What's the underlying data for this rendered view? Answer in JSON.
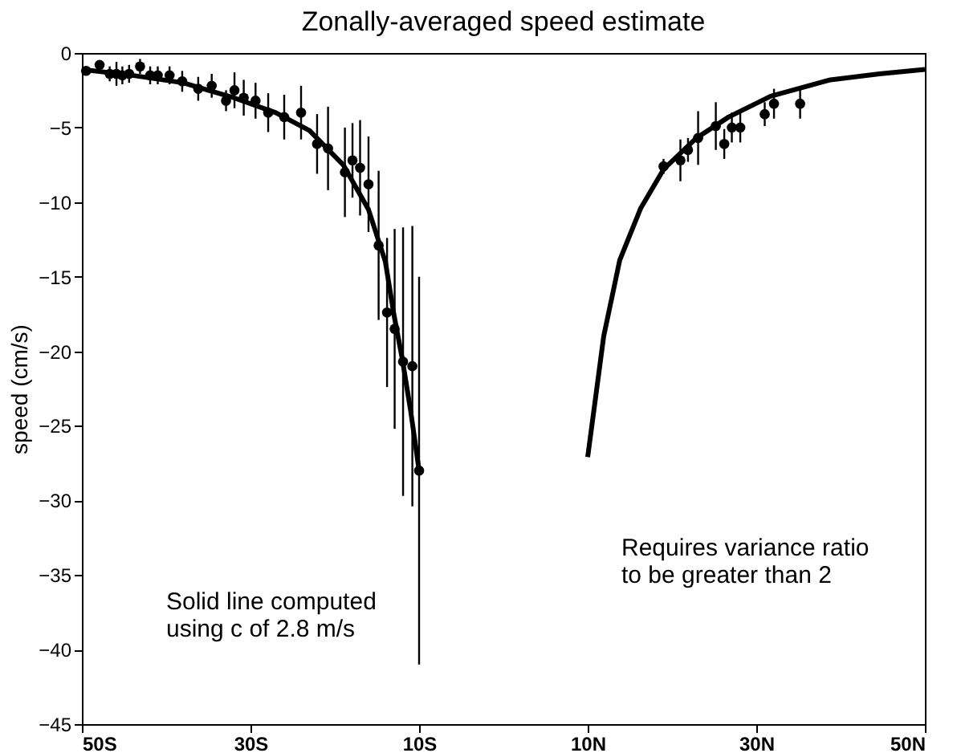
{
  "chart_data": {
    "type": "scatter",
    "title": "Zonally-averaged speed estimate",
    "ylabel": "speed (cm/s)",
    "xlim": [
      -50,
      50
    ],
    "ylim": [
      -45,
      0
    ],
    "xticks": [
      {
        "value": -50,
        "label": "50S"
      },
      {
        "value": -30,
        "label": "30S"
      },
      {
        "value": -10,
        "label": "10S"
      },
      {
        "value": 10,
        "label": "10N"
      },
      {
        "value": 30,
        "label": "30N"
      },
      {
        "value": 50,
        "label": "50N"
      }
    ],
    "yticks": [
      -45,
      -40,
      -35,
      -30,
      -25,
      -20,
      -15,
      -10,
      -5,
      0
    ],
    "grid": false,
    "line_style": "solid",
    "annotations": [
      "Solid line computed\nusing c of 2.8 m/s",
      "Requires variance ratio\nto be greater than 2"
    ],
    "series": [
      {
        "type": "line",
        "color": "#000000",
        "x": [
          -50,
          -44,
          -38,
          -32,
          -27,
          -23,
          -19,
          -16,
          -14,
          -13,
          -12,
          -11,
          -10
        ],
        "values": [
          -1.1,
          -1.5,
          -2.0,
          -3.0,
          -4.0,
          -5.2,
          -7.5,
          -10.5,
          -14,
          -17.5,
          -20.5,
          -24,
          -28
        ]
      },
      {
        "type": "line",
        "color": "#000000",
        "x": [
          10,
          11.9,
          13.8,
          16.3,
          19,
          22.9,
          26.7,
          31.7,
          38.8,
          44.6,
          50
        ],
        "values": [
          -27.1,
          -19,
          -13.9,
          -10.4,
          -7.8,
          -5.7,
          -4.3,
          -2.9,
          -1.8,
          -1.4,
          -1.1
        ]
      },
      {
        "color": "#000000",
        "marker": "circle",
        "x": [
          -49.5,
          -47.9,
          -46.7,
          -45.9,
          -45.2,
          -44.4,
          -43.1,
          -41.9,
          -41,
          -39.6,
          -38.1,
          -36.2,
          -34.6,
          -32.9,
          -31.9,
          -30.8,
          -29.4,
          -27.9,
          -26,
          -24,
          -22.1,
          -20.8,
          -18.8,
          -17.9,
          -17,
          -16,
          -14.8,
          -13.8,
          -12.9,
          -11.9,
          -10.8,
          -10,
          19,
          21,
          21.9,
          23.1,
          25.2,
          26.2,
          27.1,
          28.1,
          31,
          32.1,
          35.2
        ],
        "values": [
          -1.2,
          -0.8,
          -1.4,
          -1.4,
          -1.5,
          -1.4,
          -0.9,
          -1.5,
          -1.5,
          -1.5,
          -1.9,
          -2.4,
          -2.2,
          -3.2,
          -2.5,
          -3,
          -3.2,
          -4,
          -4.3,
          -4,
          -6.1,
          -6.4,
          -8,
          -7.2,
          -7.7,
          -8.8,
          -12.9,
          -17.4,
          -18.5,
          -20.7,
          -21,
          -28,
          -7.6,
          -7.2,
          -6.5,
          -5.7,
          -4.9,
          -6.1,
          -5,
          -5,
          -4.1,
          -3.4,
          -3.4
        ],
        "errors": [
          0.3,
          0.3,
          0.5,
          0.8,
          0.6,
          0.6,
          0.5,
          0.6,
          0.6,
          0.6,
          0.7,
          0.8,
          0.8,
          0.7,
          1.2,
          1.2,
          1.2,
          1.3,
          1.5,
          1.8,
          2,
          2.8,
          3,
          2.5,
          3.2,
          3.2,
          5,
          5,
          6.7,
          9,
          9.4,
          13,
          0.5,
          1.4,
          0.8,
          1.8,
          1.6,
          1,
          1,
          1,
          0.8,
          1,
          1
        ]
      }
    ]
  }
}
